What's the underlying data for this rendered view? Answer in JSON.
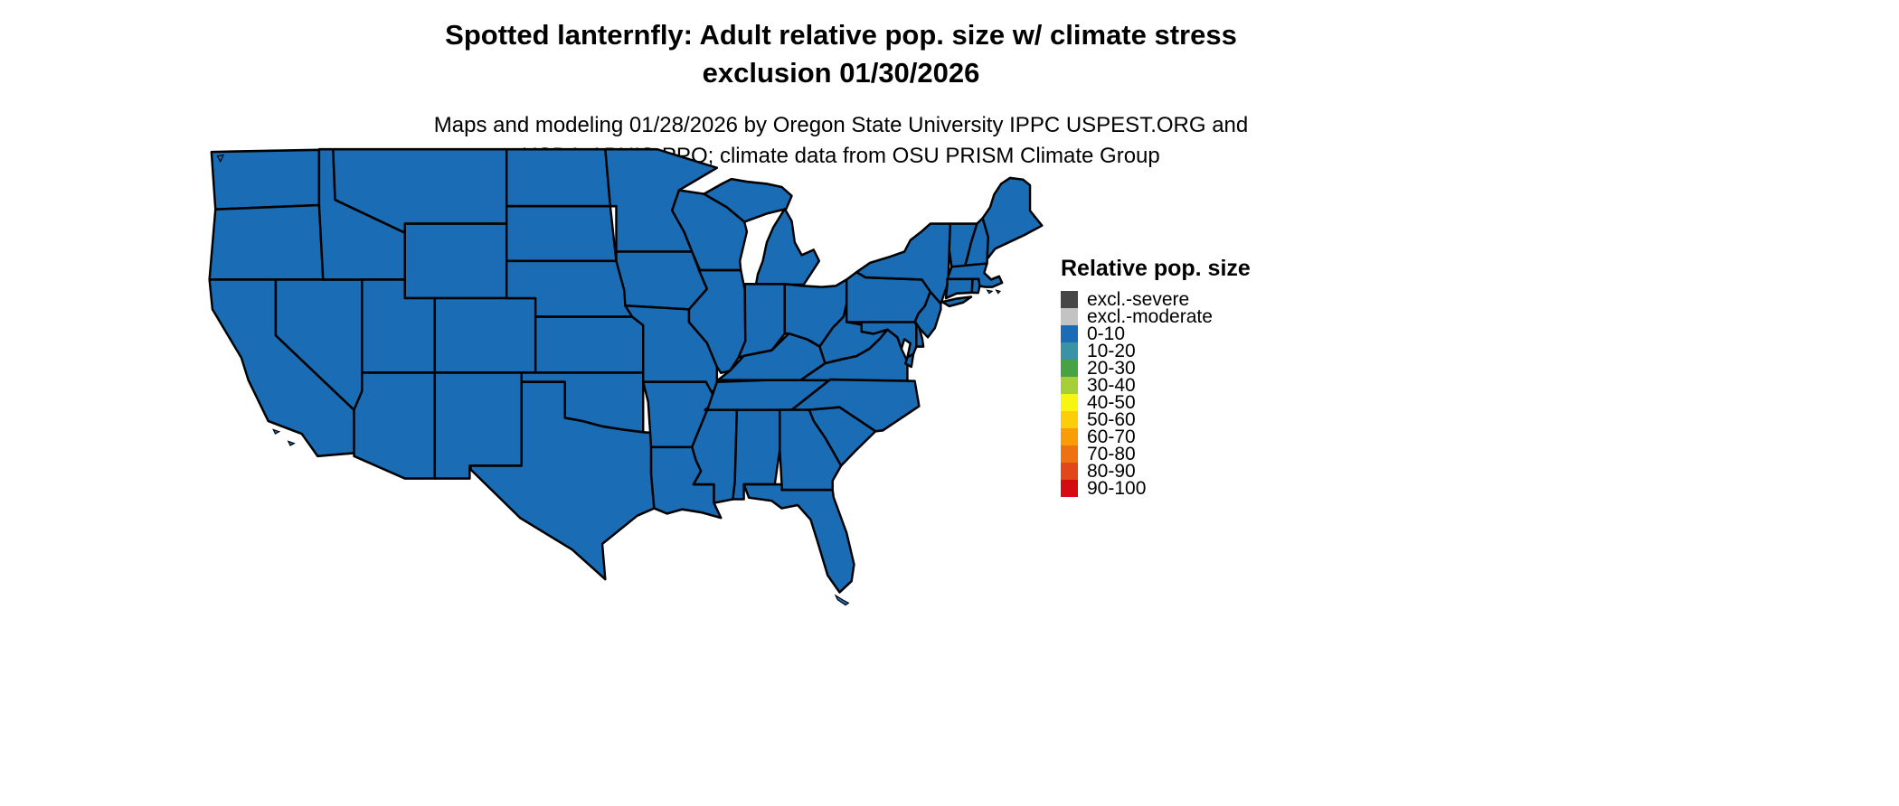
{
  "page": {
    "background_color": "#ffffff"
  },
  "title": {
    "line1": "Spotted lanternfly: Adult relative pop. size w/ climate stress",
    "line2": "exclusion 01/30/2026"
  },
  "subtitle": {
    "line1": "Maps and modeling 01/28/2026 by Oregon State University IPPC USPEST.ORG and",
    "line2": "USDA-APHIS-PPQ; climate data from OSU PRISM Climate Group"
  },
  "map": {
    "region": "contiguous-united-states",
    "fill_color": "#1a6cb4",
    "border_color": "#000000",
    "uniform_value_class": "0-10"
  },
  "legend": {
    "title": "Relative pop. size",
    "items": [
      {
        "label": "excl.-severe",
        "color": "#474747"
      },
      {
        "label": "excl.-moderate",
        "color": "#c3c3c3"
      },
      {
        "label": "0-10",
        "color": "#1a6cb4"
      },
      {
        "label": "10-20",
        "color": "#3a92a5"
      },
      {
        "label": "20-30",
        "color": "#47a244"
      },
      {
        "label": "30-40",
        "color": "#a6ce39"
      },
      {
        "label": "40-50",
        "color": "#f9f513"
      },
      {
        "label": "50-60",
        "color": "#fcce08"
      },
      {
        "label": "60-70",
        "color": "#fa9c08"
      },
      {
        "label": "70-80",
        "color": "#ee7211"
      },
      {
        "label": "80-90",
        "color": "#e14719"
      },
      {
        "label": "90-100",
        "color": "#d40b10"
      }
    ]
  }
}
